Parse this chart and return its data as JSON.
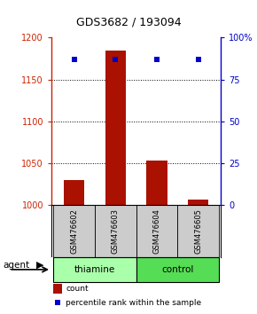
{
  "title": "GDS3682 / 193094",
  "samples": [
    "GSM476602",
    "GSM476603",
    "GSM476604",
    "GSM476605"
  ],
  "counts": [
    1030,
    1185,
    1053,
    1007
  ],
  "percentiles": [
    87,
    87,
    87,
    87
  ],
  "count_baseline": 1000,
  "ylim_left": [
    1000,
    1200
  ],
  "ylim_right": [
    0,
    100
  ],
  "yticks_left": [
    1000,
    1050,
    1100,
    1150,
    1200
  ],
  "yticks_right": [
    0,
    25,
    50,
    75,
    100
  ],
  "bar_color": "#aa1100",
  "dot_color": "#0000cc",
  "groups": [
    {
      "label": "thiamine",
      "samples": [
        0,
        1
      ],
      "color": "#aaffaa"
    },
    {
      "label": "control",
      "samples": [
        2,
        3
      ],
      "color": "#55dd55"
    }
  ],
  "sample_box_color": "#cccccc",
  "agent_label": "agent",
  "legend_count_label": "count",
  "legend_pct_label": "percentile rank within the sample",
  "bar_width": 0.5,
  "background_color": "#ffffff",
  "left_color": "#cc2200",
  "right_color": "#0000cc"
}
